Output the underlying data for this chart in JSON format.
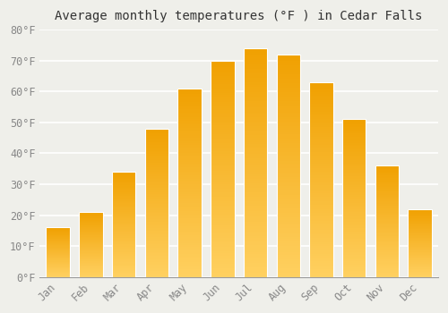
{
  "title": "Average monthly temperatures (°F ) in Cedar Falls",
  "months": [
    "Jan",
    "Feb",
    "Mar",
    "Apr",
    "May",
    "Jun",
    "Jul",
    "Aug",
    "Sep",
    "Oct",
    "Nov",
    "Dec"
  ],
  "values": [
    16,
    21,
    34,
    48,
    61,
    70,
    74,
    72,
    63,
    51,
    36,
    22
  ],
  "bar_color": "#F5A800",
  "bar_color_light": "#FFD060",
  "ylim": [
    0,
    80
  ],
  "yticks": [
    0,
    10,
    20,
    30,
    40,
    50,
    60,
    70,
    80
  ],
  "ytick_labels": [
    "0°F",
    "10°F",
    "20°F",
    "30°F",
    "40°F",
    "50°F",
    "60°F",
    "70°F",
    "80°F"
  ],
  "background_color": "#EFEFEA",
  "grid_color": "#FFFFFF",
  "title_fontsize": 10,
  "tick_fontsize": 8.5,
  "bar_edge_color": "#FFFFFF"
}
